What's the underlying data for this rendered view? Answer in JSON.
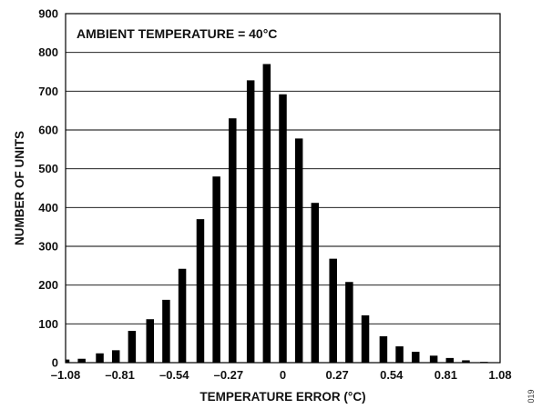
{
  "chart_data": {
    "type": "bar",
    "annotation": "AMBIENT TEMPERATURE = 40°C",
    "xlabel": "TEMPERATURE ERROR (°C)",
    "ylabel": "NUMBER OF UNITS",
    "figure_id": "019",
    "ylim": [
      0,
      900
    ],
    "yticks": [
      0,
      100,
      200,
      300,
      400,
      500,
      600,
      700,
      800,
      900
    ],
    "ytick_labels": [
      "0",
      "100",
      "200",
      "300",
      "400",
      "500",
      "600",
      "700",
      "800",
      "900"
    ],
    "xlim": [
      -1.08,
      1.08
    ],
    "xticks": [
      -1.08,
      -0.81,
      -0.54,
      -0.27,
      0,
      0.27,
      0.54,
      0.81,
      1.08
    ],
    "xtick_labels": [
      "–1.08",
      "–0.81",
      "–0.54",
      "–0.27",
      "0",
      "0.27",
      "0.54",
      "0.81",
      "1.08"
    ],
    "grid": "horizontal",
    "bar_color": "#000000",
    "x": [
      -1.08,
      -1.0,
      -0.91,
      -0.83,
      -0.75,
      -0.66,
      -0.58,
      -0.5,
      -0.41,
      -0.33,
      -0.25,
      -0.16,
      -0.08,
      0.0,
      0.08,
      0.16,
      0.25,
      0.33,
      0.41,
      0.5,
      0.58,
      0.66,
      0.75,
      0.83,
      0.91,
      1.0,
      1.08
    ],
    "values": [
      8,
      10,
      24,
      32,
      82,
      112,
      162,
      242,
      370,
      480,
      630,
      728,
      770,
      692,
      578,
      412,
      268,
      208,
      122,
      68,
      42,
      28,
      18,
      12,
      6,
      2,
      0
    ]
  }
}
